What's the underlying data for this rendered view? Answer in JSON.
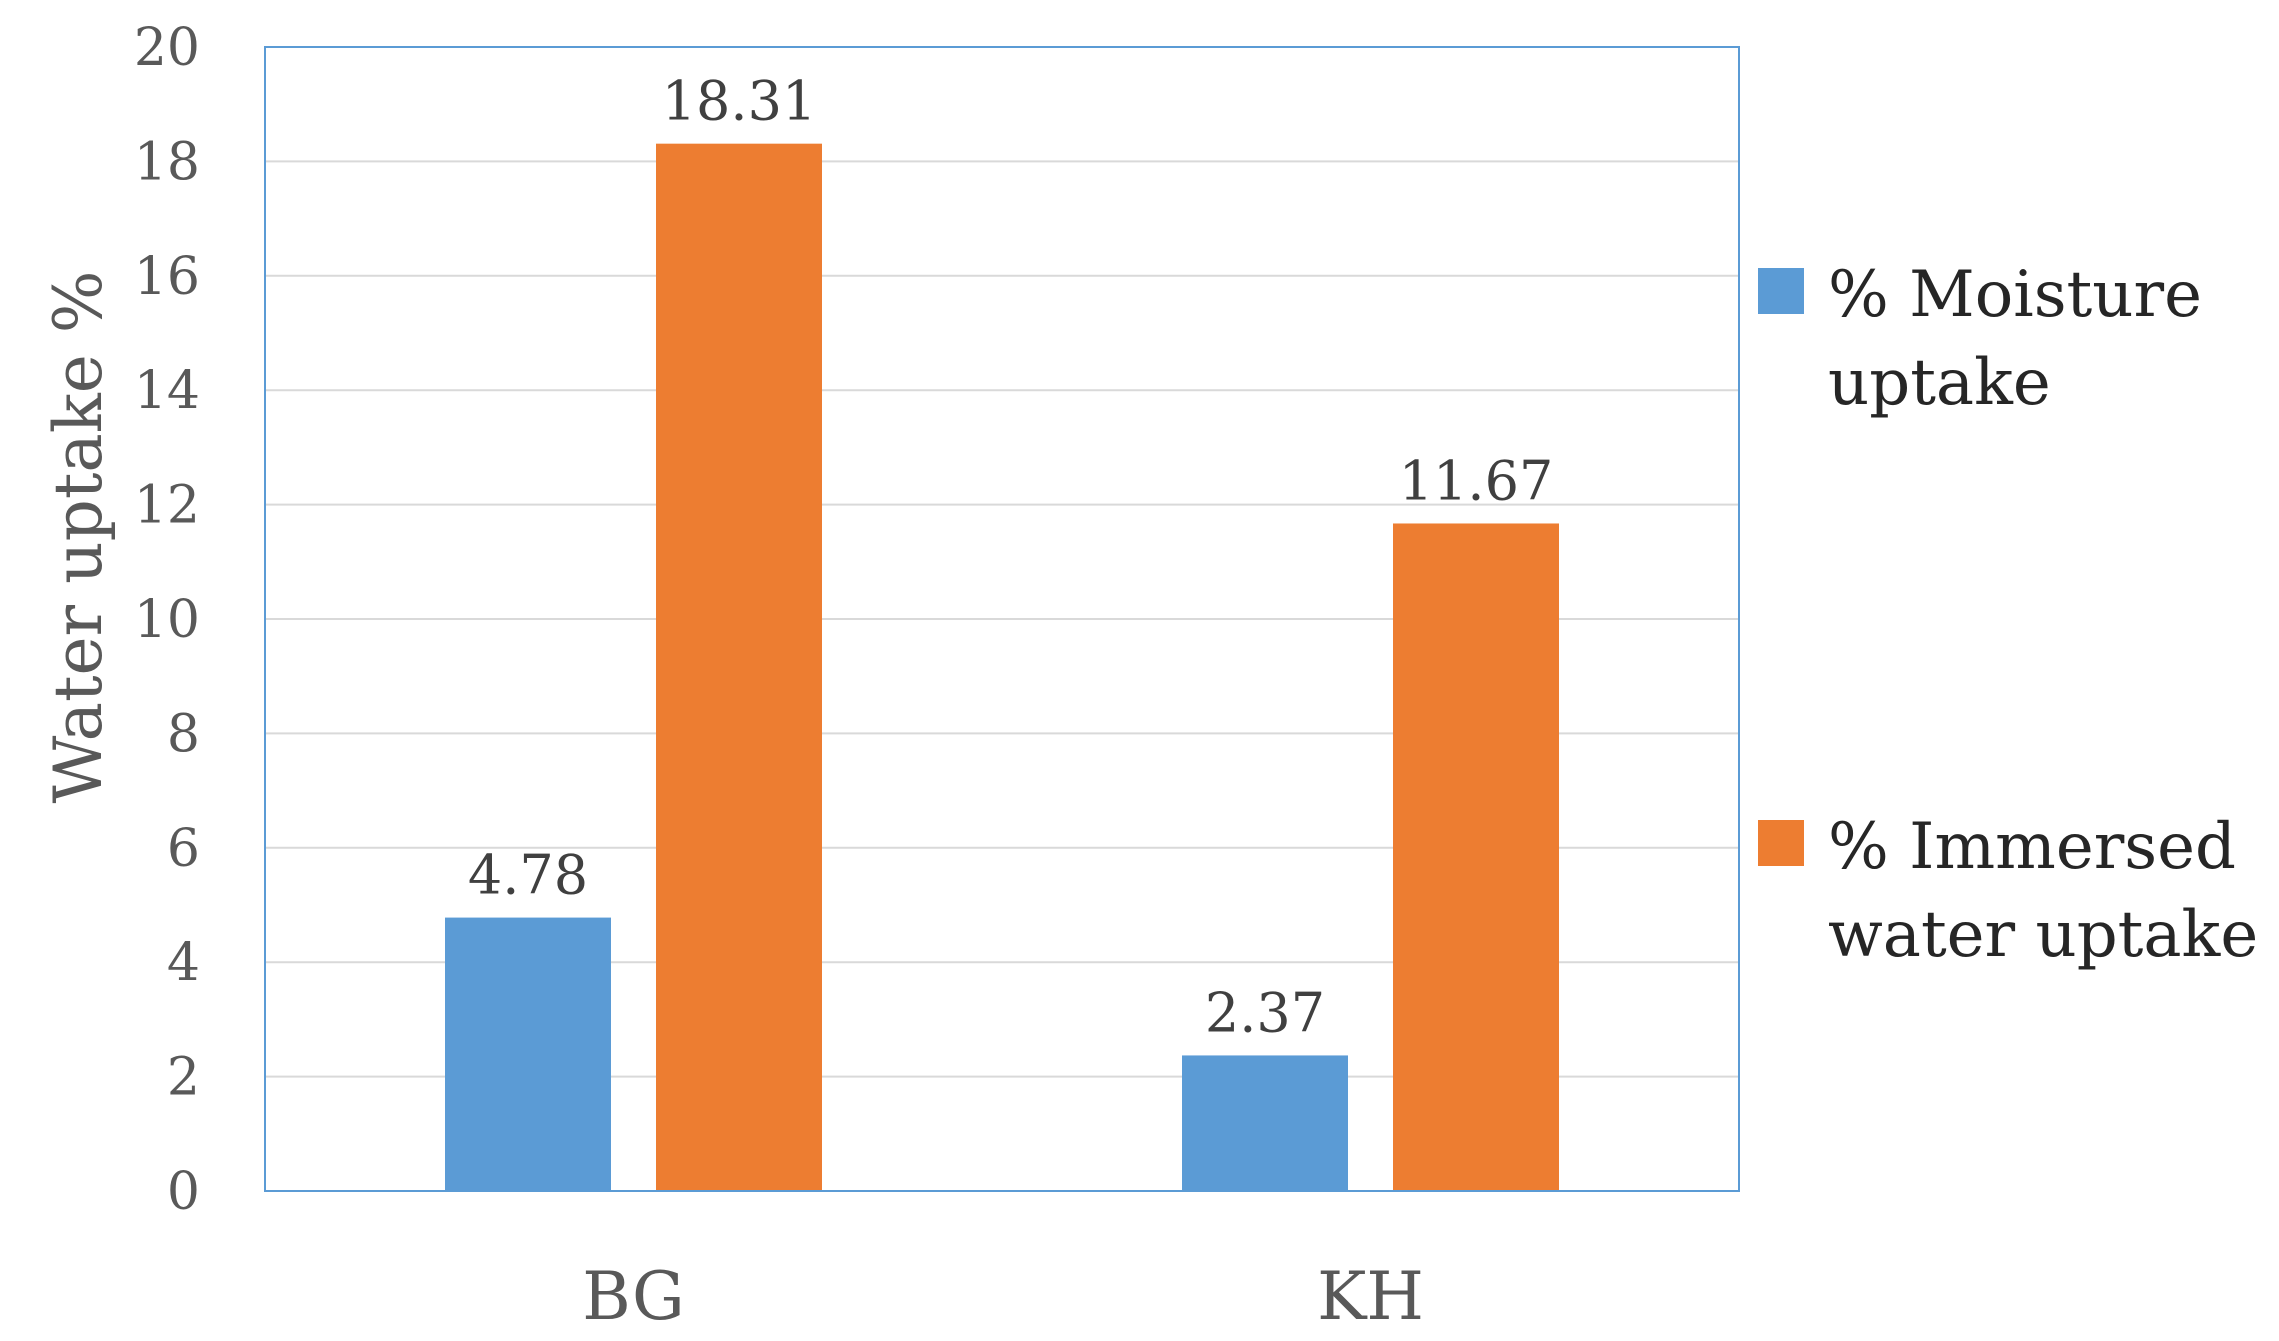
{
  "chart_data": {
    "type": "bar",
    "categories": [
      "BG",
      "KH"
    ],
    "series": [
      {
        "name": "% Moisture uptake",
        "name_lines": [
          "% Moisture",
          "uptake"
        ],
        "values": [
          4.78,
          2.37
        ],
        "color": "#5B9BD5"
      },
      {
        "name": "% Immersed water uptake",
        "name_lines": [
          "% Immersed",
          "water uptake"
        ],
        "values": [
          18.31,
          11.67
        ],
        "color": "#ED7D31"
      }
    ],
    "data_labels": [
      [
        "4.78",
        "2.37"
      ],
      [
        "18.31",
        "11.67"
      ]
    ],
    "title": "",
    "xlabel": "",
    "ylabel": "Water uptake %",
    "ylim": [
      0,
      20
    ],
    "yticks": [
      "0",
      "2",
      "4",
      "6",
      "8",
      "10",
      "12",
      "14",
      "16",
      "18",
      "20"
    ],
    "grid": true,
    "legend_position": "right",
    "plot_border_color": "#5B9BD5",
    "gridline_color": "#D9D9D9"
  }
}
